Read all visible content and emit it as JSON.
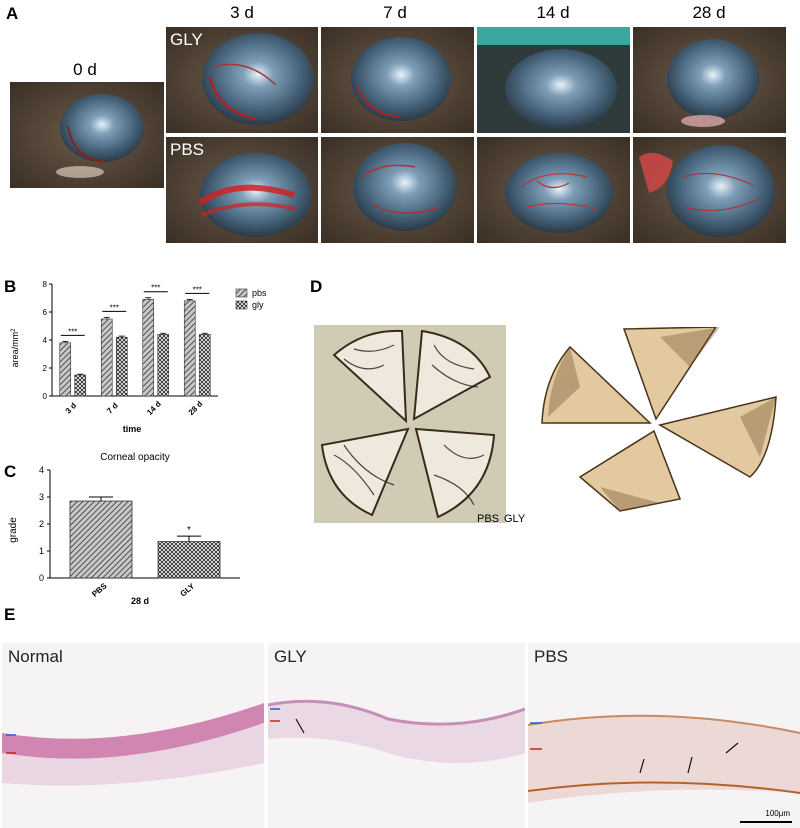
{
  "panel_a": {
    "letter": "A",
    "day0_label": "0 d",
    "day_labels": [
      "3 d",
      "7 d",
      "14 d",
      "28 d"
    ],
    "row_labels": [
      "GLY",
      "PBS"
    ]
  },
  "panel_b": {
    "letter": "B",
    "ylabel": "area/mm",
    "ylabel_sup": "2",
    "xlabel": "time",
    "legend": [
      "pbs",
      "gly"
    ],
    "sig": [
      "***",
      "***",
      "***",
      "***"
    ]
  },
  "panel_c": {
    "letter": "C",
    "title": "Corneal opacity",
    "ylabel": "grade",
    "xlabel": "28 d",
    "sig": "*"
  },
  "panel_d": {
    "letter": "D",
    "caption_left": "PBS",
    "caption_right": "GLY"
  },
  "panel_e": {
    "letter": "E",
    "labels": [
      "Normal",
      "GLY",
      "PBS"
    ],
    "scale_bar": "100μm"
  },
  "chart_data": [
    {
      "type": "bar",
      "panel": "B",
      "categories": [
        "3 d",
        "7 d",
        "14 d",
        "28 d"
      ],
      "series": [
        {
          "name": "pbs",
          "values": [
            3.8,
            5.5,
            6.9,
            6.8
          ],
          "errors": [
            0.1,
            0.12,
            0.12,
            0.1
          ]
        },
        {
          "name": "gly",
          "values": [
            1.5,
            4.2,
            4.4,
            4.4
          ],
          "errors": [
            0.06,
            0.08,
            0.08,
            0.08
          ]
        }
      ],
      "xlabel": "time",
      "ylabel": "area/mm2",
      "ylim": [
        0,
        8
      ],
      "yticks": [
        0,
        2,
        4,
        6,
        8
      ],
      "legend_position": "top-right"
    },
    {
      "type": "bar",
      "panel": "C",
      "title": "Corneal opacity",
      "categories": [
        "PBS",
        "GLY"
      ],
      "values": [
        2.85,
        1.35
      ],
      "errors": [
        0.15,
        0.2
      ],
      "xlabel": "28 d",
      "ylabel": "grade",
      "ylim": [
        0,
        4
      ],
      "yticks": [
        0,
        1,
        2,
        3,
        4
      ]
    }
  ]
}
